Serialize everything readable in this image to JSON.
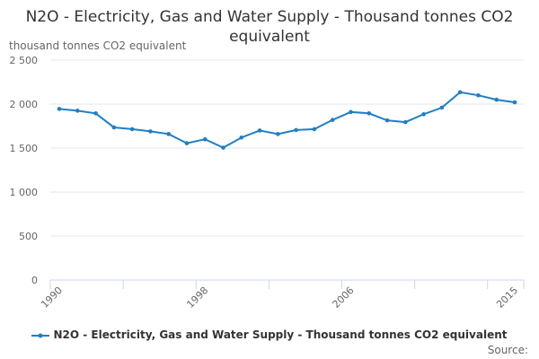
{
  "chart_data": {
    "type": "line",
    "title": "N2O - Electricity, Gas and Water Supply - Thousand tonnes CO2 equivalent",
    "ylabel": "thousand tonnes CO2 equivalent",
    "xlabel": "",
    "x": [
      1990,
      1991,
      1992,
      1993,
      1994,
      1995,
      1996,
      1997,
      1998,
      1999,
      2000,
      2001,
      2002,
      2003,
      2004,
      2005,
      2006,
      2007,
      2008,
      2009,
      2010,
      2011,
      2012,
      2013,
      2014,
      2015
    ],
    "series": [
      {
        "name": "N2O - Electricity, Gas and Water Supply - Thousand tonnes CO2 equivalent",
        "color": "#1f7fc4",
        "values": [
          1945,
          1925,
          1895,
          1735,
          1715,
          1690,
          1660,
          1555,
          1600,
          1505,
          1620,
          1700,
          1660,
          1705,
          1715,
          1820,
          1910,
          1895,
          1815,
          1795,
          1885,
          1960,
          2135,
          2100,
          2050,
          2020
        ]
      }
    ],
    "ylim": [
      0,
      2500
    ],
    "yticks": [
      {
        "v": 0,
        "label": "0"
      },
      {
        "v": 500,
        "label": "500"
      },
      {
        "v": 1000,
        "label": "1 000"
      },
      {
        "v": 1500,
        "label": "1 500"
      },
      {
        "v": 2000,
        "label": "2 000"
      },
      {
        "v": 2500,
        "label": "2 500"
      }
    ],
    "xtick_labels": [
      1990,
      1998,
      2006,
      2015
    ],
    "grid": true,
    "legend": "bottom",
    "source_label": "Source:"
  }
}
